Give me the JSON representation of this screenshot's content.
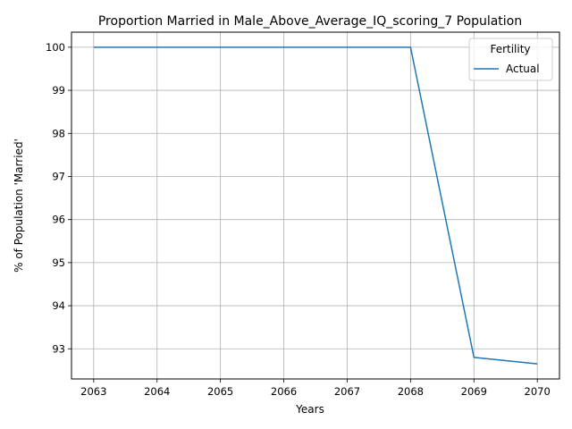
{
  "chart_data": {
    "type": "line",
    "title": "Proportion Married in Male_Above_Average_IQ_scoring_7 Population",
    "xlabel": "Years",
    "ylabel": "% of Population 'Married'",
    "x": [
      2063,
      2064,
      2065,
      2066,
      2067,
      2068,
      2069,
      2070
    ],
    "series": [
      {
        "name": "Actual",
        "values": [
          100,
          100,
          100,
          100,
          100,
          100,
          92.8,
          92.65
        ],
        "color": "#1f77b4"
      }
    ],
    "xlim": [
      2062.65,
      2070.35
    ],
    "ylim": [
      92.3,
      100.35
    ],
    "xticks": [
      2063,
      2064,
      2065,
      2066,
      2067,
      2068,
      2069,
      2070
    ],
    "yticks": [
      93,
      94,
      95,
      96,
      97,
      98,
      99,
      100
    ],
    "grid": true,
    "legend": {
      "title": "Fertility",
      "placement": "top-right"
    }
  }
}
